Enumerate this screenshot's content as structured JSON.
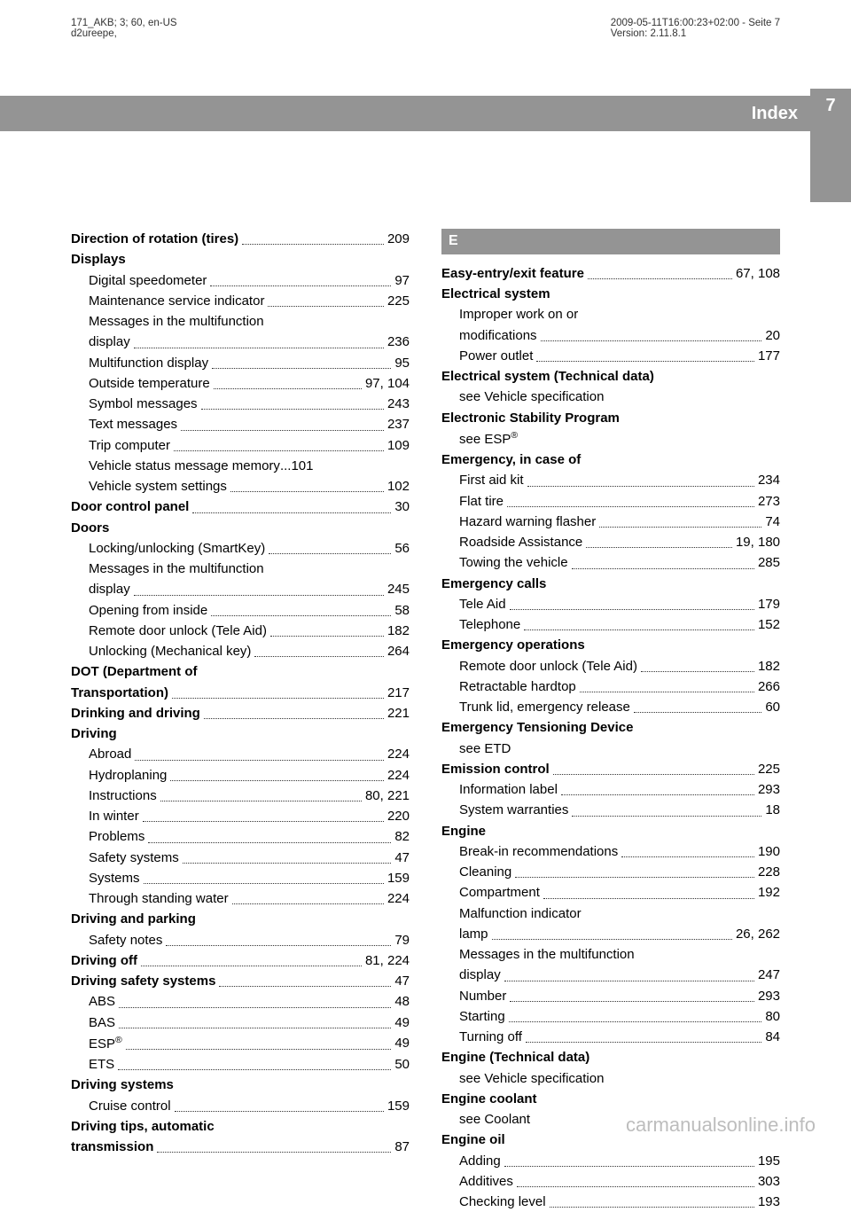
{
  "meta": {
    "left1": "171_AKB; 3; 60, en-US",
    "left2": "d2ureepe,",
    "right1": "2009-05-11T16:00:23+02:00 - Seite 7",
    "right2": "Version: 2.11.8.1"
  },
  "header": {
    "title": "Index",
    "page": "7"
  },
  "col1": [
    {
      "type": "entry",
      "bold": true,
      "label": "Direction of rotation (tires)",
      "page": "209",
      "sub": 0
    },
    {
      "type": "head",
      "label": "Displays"
    },
    {
      "type": "entry",
      "label": "Digital speedometer",
      "page": "97",
      "sub": 1
    },
    {
      "type": "entry",
      "label": "Maintenance service indicator",
      "page": "225",
      "sub": 1
    },
    {
      "type": "text",
      "label": "Messages in the multifunction",
      "sub": 1
    },
    {
      "type": "entry",
      "label": "display",
      "page": "236",
      "sub": 1
    },
    {
      "type": "entry",
      "label": "Multifunction display",
      "page": "95",
      "sub": 1
    },
    {
      "type": "entry",
      "label": "Outside temperature",
      "page": "97, 104",
      "sub": 1
    },
    {
      "type": "entry",
      "label": "Symbol messages",
      "page": "243",
      "sub": 1
    },
    {
      "type": "entry",
      "label": "Text messages",
      "page": "237",
      "sub": 1
    },
    {
      "type": "entry",
      "label": "Trip computer",
      "page": "109",
      "sub": 1
    },
    {
      "type": "entry",
      "label": "Vehicle status message memory",
      "page": "101",
      "sub": 1,
      "joiner": "..."
    },
    {
      "type": "entry",
      "label": "Vehicle system settings",
      "page": "102",
      "sub": 1
    },
    {
      "type": "entry",
      "bold": true,
      "label": "Door control panel",
      "page": "30",
      "sub": 0
    },
    {
      "type": "head",
      "label": "Doors"
    },
    {
      "type": "entry",
      "label": "Locking/unlocking (SmartKey)",
      "page": "56",
      "sub": 1
    },
    {
      "type": "text",
      "label": "Messages in the multifunction",
      "sub": 1
    },
    {
      "type": "entry",
      "label": "display",
      "page": "245",
      "sub": 1
    },
    {
      "type": "entry",
      "label": "Opening from inside",
      "page": "58",
      "sub": 1
    },
    {
      "type": "entry",
      "label": "Remote door unlock (Tele Aid)",
      "page": "182",
      "sub": 1
    },
    {
      "type": "entry",
      "label": "Unlocking (Mechanical key)",
      "page": "264",
      "sub": 1
    },
    {
      "type": "head",
      "label": "DOT (Department of"
    },
    {
      "type": "entry",
      "bold": true,
      "label": "Transportation)",
      "page": "217",
      "sub": 0
    },
    {
      "type": "entry",
      "bold": true,
      "label": "Drinking and driving",
      "page": "221",
      "sub": 0
    },
    {
      "type": "head",
      "label": "Driving"
    },
    {
      "type": "entry",
      "label": "Abroad",
      "page": "224",
      "sub": 1
    },
    {
      "type": "entry",
      "label": "Hydroplaning",
      "page": "224",
      "sub": 1
    },
    {
      "type": "entry",
      "label": "Instructions",
      "page": "80, 221",
      "sub": 1
    },
    {
      "type": "entry",
      "label": "In winter",
      "page": "220",
      "sub": 1
    },
    {
      "type": "entry",
      "label": "Problems",
      "page": "82",
      "sub": 1
    },
    {
      "type": "entry",
      "label": "Safety systems",
      "page": "47",
      "sub": 1
    },
    {
      "type": "entry",
      "label": "Systems",
      "page": "159",
      "sub": 1
    },
    {
      "type": "entry",
      "label": "Through standing water",
      "page": "224",
      "sub": 1
    },
    {
      "type": "head",
      "label": "Driving and parking"
    },
    {
      "type": "entry",
      "label": "Safety notes",
      "page": "79",
      "sub": 1
    },
    {
      "type": "entry",
      "bold": true,
      "label": "Driving off",
      "page": "81, 224",
      "sub": 0
    },
    {
      "type": "entry",
      "bold": true,
      "label": "Driving safety systems",
      "page": "47",
      "sub": 0
    },
    {
      "type": "entry",
      "label": "ABS",
      "page": "48",
      "sub": 1
    },
    {
      "type": "entry",
      "label": "BAS",
      "page": "49",
      "sub": 1
    },
    {
      "type": "entry",
      "label": "ESP®",
      "page": "49",
      "sub": 1,
      "html": true,
      "raw": "ESP<sup>®</sup>"
    },
    {
      "type": "entry",
      "label": "ETS",
      "page": "50",
      "sub": 1
    },
    {
      "type": "head",
      "label": "Driving systems"
    },
    {
      "type": "entry",
      "label": "Cruise control",
      "page": "159",
      "sub": 1
    },
    {
      "type": "head",
      "label": "Driving tips, automatic"
    },
    {
      "type": "entry",
      "bold": true,
      "label": "transmission",
      "page": "87",
      "sub": 0
    }
  ],
  "col2": [
    {
      "type": "letter",
      "label": "E"
    },
    {
      "type": "entry",
      "bold": true,
      "label": "Easy-entry/exit feature",
      "page": "67, 108",
      "sub": 0
    },
    {
      "type": "head",
      "label": "Electrical system"
    },
    {
      "type": "text",
      "label": "Improper work on or",
      "sub": 1
    },
    {
      "type": "entry",
      "label": "modifications",
      "page": "20",
      "sub": 1
    },
    {
      "type": "entry",
      "label": "Power outlet",
      "page": "177",
      "sub": 1
    },
    {
      "type": "head",
      "label": "Electrical system (Technical data)"
    },
    {
      "type": "see",
      "label": "see Vehicle specification"
    },
    {
      "type": "head",
      "label": "Electronic Stability Program"
    },
    {
      "type": "see",
      "label": "see ESP®",
      "html": true,
      "raw": "see ESP<sup>®</sup>"
    },
    {
      "type": "head",
      "label": "Emergency, in case of"
    },
    {
      "type": "entry",
      "label": "First aid kit",
      "page": "234",
      "sub": 1
    },
    {
      "type": "entry",
      "label": "Flat tire",
      "page": "273",
      "sub": 1
    },
    {
      "type": "entry",
      "label": "Hazard warning flasher",
      "page": "74",
      "sub": 1
    },
    {
      "type": "entry",
      "label": "Roadside Assistance",
      "page": "19, 180",
      "sub": 1
    },
    {
      "type": "entry",
      "label": "Towing the vehicle",
      "page": "285",
      "sub": 1
    },
    {
      "type": "head",
      "label": "Emergency calls"
    },
    {
      "type": "entry",
      "label": "Tele Aid",
      "page": "179",
      "sub": 1
    },
    {
      "type": "entry",
      "label": "Telephone",
      "page": "152",
      "sub": 1
    },
    {
      "type": "head",
      "label": "Emergency operations"
    },
    {
      "type": "entry",
      "label": "Remote door unlock (Tele Aid)",
      "page": "182",
      "sub": 1
    },
    {
      "type": "entry",
      "label": "Retractable hardtop",
      "page": "266",
      "sub": 1
    },
    {
      "type": "entry",
      "label": "Trunk lid, emergency release",
      "page": "60",
      "sub": 1
    },
    {
      "type": "head",
      "label": "Emergency Tensioning Device"
    },
    {
      "type": "see",
      "label": "see ETD"
    },
    {
      "type": "entry",
      "bold": true,
      "label": "Emission control",
      "page": "225",
      "sub": 0
    },
    {
      "type": "entry",
      "label": "Information label",
      "page": "293",
      "sub": 1
    },
    {
      "type": "entry",
      "label": "System warranties",
      "page": "18",
      "sub": 1
    },
    {
      "type": "head",
      "label": "Engine"
    },
    {
      "type": "entry",
      "label": "Break-in recommendations",
      "page": "190",
      "sub": 1
    },
    {
      "type": "entry",
      "label": "Cleaning",
      "page": "228",
      "sub": 1
    },
    {
      "type": "entry",
      "label": "Compartment",
      "page": "192",
      "sub": 1
    },
    {
      "type": "text",
      "label": "Malfunction indicator",
      "sub": 1
    },
    {
      "type": "entry",
      "label": "lamp",
      "page": "26, 262",
      "sub": 1
    },
    {
      "type": "text",
      "label": "Messages in the multifunction",
      "sub": 1
    },
    {
      "type": "entry",
      "label": "display",
      "page": "247",
      "sub": 1
    },
    {
      "type": "entry",
      "label": "Number",
      "page": "293",
      "sub": 1
    },
    {
      "type": "entry",
      "label": "Starting",
      "page": "80",
      "sub": 1
    },
    {
      "type": "entry",
      "label": "Turning off",
      "page": "84",
      "sub": 1
    },
    {
      "type": "head",
      "label": "Engine (Technical data)"
    },
    {
      "type": "see",
      "label": "see Vehicle specification"
    },
    {
      "type": "head",
      "label": "Engine coolant"
    },
    {
      "type": "see",
      "label": "see Coolant"
    },
    {
      "type": "head",
      "label": "Engine oil"
    },
    {
      "type": "entry",
      "label": "Adding",
      "page": "195",
      "sub": 1
    },
    {
      "type": "entry",
      "label": "Additives",
      "page": "303",
      "sub": 1
    },
    {
      "type": "entry",
      "label": "Checking level",
      "page": "193",
      "sub": 1
    }
  ],
  "watermark": "carmanualsonline.info"
}
